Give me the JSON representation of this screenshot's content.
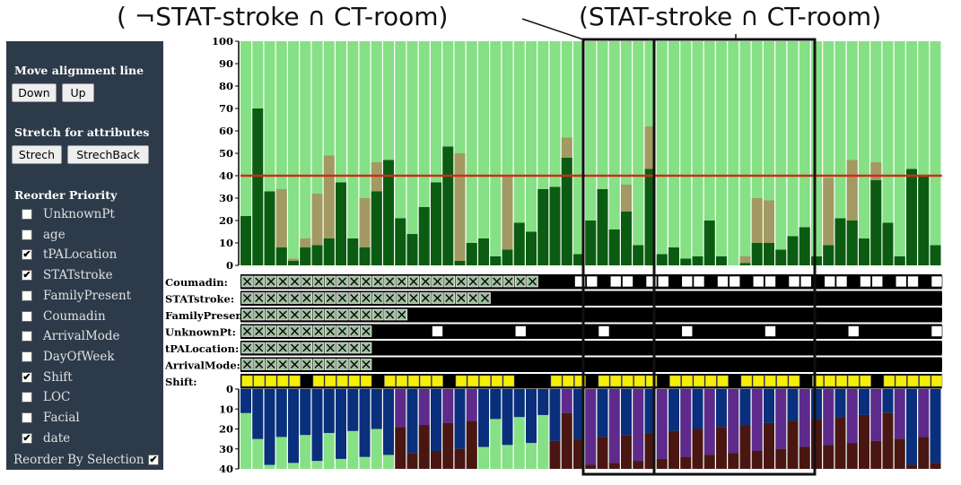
{
  "annotations": {
    "left": "( ¬STAT-stroke ∩ CT-room)",
    "right": "(STAT-stroke ∩ CT-room)"
  },
  "panel": {
    "move_title": "Move alignment line",
    "down_label": "Down",
    "up_label": "Up",
    "stretch_title": "Stretch for attributes",
    "strech_label": "Strech",
    "strechback_label": "StrechBack",
    "reorder_title": "Reorder Priority",
    "checkboxes": [
      {
        "label": "UnknownPt",
        "checked": false
      },
      {
        "label": "age",
        "checked": false
      },
      {
        "label": "tPALocation",
        "checked": true
      },
      {
        "label": "STATstroke",
        "checked": true
      },
      {
        "label": "FamilyPresent",
        "checked": false
      },
      {
        "label": "Coumadin",
        "checked": false
      },
      {
        "label": "ArrivalMode",
        "checked": false
      },
      {
        "label": "DayOfWeek",
        "checked": false
      },
      {
        "label": "Shift",
        "checked": true
      },
      {
        "label": "LOC",
        "checked": false
      },
      {
        "label": "Facial",
        "checked": false
      },
      {
        "label": "date",
        "checked": true
      }
    ],
    "reorder_by_selection_label": "Reorder By Selection",
    "reorder_by_selection_checked": true
  },
  "chart_data": {
    "type": "bar",
    "top": {
      "ylim": [
        0,
        100
      ],
      "ticks": [
        "100",
        "90",
        "80",
        "70",
        "60",
        "50",
        "40",
        "30",
        "20",
        "10",
        "0"
      ],
      "threshold": 40,
      "primary": [
        22,
        70,
        33,
        8,
        2,
        8,
        9,
        12,
        37,
        12,
        8,
        33,
        47,
        21,
        14,
        26,
        37,
        53,
        2,
        10,
        12,
        4,
        7,
        19,
        15,
        34,
        35,
        48,
        5,
        20,
        34,
        16,
        24,
        9,
        43,
        5,
        8,
        3,
        4,
        20,
        4,
        0,
        1,
        10,
        10,
        7,
        13,
        17,
        4,
        9,
        21,
        20,
        12,
        38,
        19,
        4,
        43,
        40,
        9
      ],
      "secondary": [
        22,
        70,
        33,
        34,
        3,
        12,
        32,
        49,
        37,
        12,
        30,
        46,
        47,
        21,
        14,
        26,
        37,
        53,
        50,
        10,
        12,
        4,
        40,
        19,
        15,
        34,
        35,
        57,
        5,
        20,
        34,
        16,
        36,
        9,
        62,
        5,
        8,
        3,
        4,
        20,
        4,
        0,
        4,
        30,
        29,
        7,
        13,
        17,
        4,
        39,
        21,
        47,
        12,
        46,
        19,
        4,
        43,
        40,
        9
      ]
    },
    "rows": [
      "Coumadin:",
      "STATstroke:",
      "FamilyPresent:",
      "UnknownPt:",
      "tPALocation:",
      "ArrivalMode:",
      "Shift:"
    ],
    "bottom": {
      "ylim": [
        0,
        40
      ],
      "ticks": [
        "0",
        "10",
        "20",
        "30",
        "40"
      ]
    },
    "colors": {
      "light_green": "#86e085",
      "dark_green": "#0b5c12",
      "olive": "#a29a62",
      "threshold_red": "#d42a1a",
      "yellow": "#f6ef00",
      "navy": "#0a2f7c",
      "purple": "#5e2a8c",
      "brown": "#4a1612"
    }
  }
}
